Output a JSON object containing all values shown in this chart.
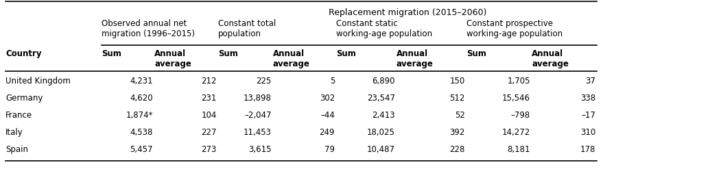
{
  "title": "Replacement migration (2015–2060)",
  "obs_header": "Observed annual net\nmigration (1996–2015)",
  "ct_header": "Constant total\npopulation",
  "cs_header": "Constant static\nworking-age population",
  "cp_header": "Constant prospective\nworking-age population",
  "rows": [
    [
      "United Kingdom",
      "4,231",
      "212",
      "225",
      "5",
      "6,890",
      "150",
      "1,705",
      "37"
    ],
    [
      "Germany",
      "4,620",
      "231",
      "13,898",
      "302",
      "23,547",
      "512",
      "15,546",
      "338"
    ],
    [
      "France",
      "1,874*",
      "104",
      "–2,047",
      "–44",
      "2,413",
      "52",
      "–798",
      "–17"
    ],
    [
      "Italy",
      "4,538",
      "227",
      "11,453",
      "249",
      "18,025",
      "392",
      "14,272",
      "310"
    ],
    [
      "Spain",
      "5,457",
      "273",
      "3,615",
      "79",
      "10,487",
      "228",
      "8,181",
      "178"
    ]
  ],
  "background_color": "#ffffff",
  "text_color": "#000000",
  "line_color": "#000000"
}
